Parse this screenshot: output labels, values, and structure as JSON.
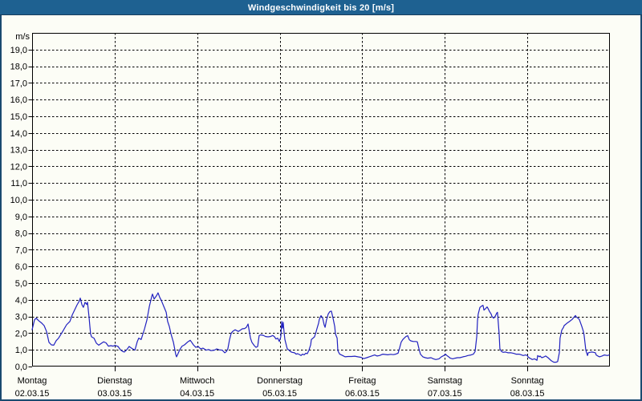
{
  "window": {
    "title": "Windgeschwindigkeit bis 20 [m/s]"
  },
  "colors": {
    "titlebar_bg": "#1e6191",
    "titlebar_text": "#ffffff",
    "frame_border": "#1a4a70",
    "background": "#fcfdf6",
    "plot_border": "#000000",
    "grid": "#000000",
    "line": "#2121c0",
    "label_text": "#000000"
  },
  "chart_data": {
    "type": "line",
    "title": "Windgeschwindigkeit bis 20 [m/s]",
    "ylabel": "m/s",
    "ylim": [
      0,
      20
    ],
    "grid": "dashed",
    "legend": "none",
    "y_tick_values": [
      0,
      1,
      2,
      3,
      4,
      5,
      6,
      7,
      8,
      9,
      10,
      11,
      12,
      13,
      14,
      15,
      16,
      17,
      18,
      19
    ],
    "y_tick_labels": [
      "0,0",
      "1,0",
      "2,0",
      "3,0",
      "4,0",
      "5,0",
      "6,0",
      "7,0",
      "8,0",
      "9,0",
      "10,0",
      "11,0",
      "12,0",
      "13,0",
      "14,0",
      "15,0",
      "16,0",
      "17,0",
      "18,0",
      "19,0"
    ],
    "x_unit": "hours",
    "xlim": [
      0,
      168
    ],
    "x_day_ticks": [
      {
        "name": "Montag",
        "date": "02.03.15",
        "hour": 0
      },
      {
        "name": "Dienstag",
        "date": "03.03.15",
        "hour": 24
      },
      {
        "name": "Mittwoch",
        "date": "04.03.15",
        "hour": 48
      },
      {
        "name": "Donnerstag",
        "date": "05.03.15",
        "hour": 72
      },
      {
        "name": "Freitag",
        "date": "06.03.15",
        "hour": 96
      },
      {
        "name": "Samstag",
        "date": "07.03.15",
        "hour": 120
      },
      {
        "name": "Sonntag",
        "date": "08.03.15",
        "hour": 144
      }
    ],
    "series": [
      {
        "name": "Windgeschwindigkeit",
        "color": "#2121c0",
        "points": [
          [
            0,
            2.2
          ],
          [
            0.7,
            2.8
          ],
          [
            1.2,
            2.9
          ],
          [
            1.9,
            2.75
          ],
          [
            2.8,
            2.6
          ],
          [
            3.5,
            2.45
          ],
          [
            4.2,
            2.1
          ],
          [
            4.9,
            1.45
          ],
          [
            5.6,
            1.3
          ],
          [
            6.3,
            1.28
          ],
          [
            7,
            1.55
          ],
          [
            7.7,
            1.7
          ],
          [
            8.9,
            2.1
          ],
          [
            10,
            2.5
          ],
          [
            11,
            2.7
          ],
          [
            11.7,
            3.1
          ],
          [
            12.4,
            3.4
          ],
          [
            13.1,
            3.7
          ],
          [
            13.8,
            3.95
          ],
          [
            14,
            4.1
          ],
          [
            14.5,
            3.7
          ],
          [
            14.9,
            3.55
          ],
          [
            15.4,
            3.85
          ],
          [
            15.9,
            3.72
          ],
          [
            16.1,
            3.85
          ],
          [
            16.3,
            3.45
          ],
          [
            16.6,
            2.9
          ],
          [
            16.8,
            2.4
          ],
          [
            17,
            1.95
          ],
          [
            17.3,
            1.78
          ],
          [
            18,
            1.7
          ],
          [
            18.7,
            1.4
          ],
          [
            19.4,
            1.28
          ],
          [
            20.1,
            1.38
          ],
          [
            20.8,
            1.48
          ],
          [
            21.5,
            1.42
          ],
          [
            22.2,
            1.22
          ],
          [
            22.9,
            1.25
          ],
          [
            23.6,
            1.22
          ],
          [
            24,
            1.27
          ],
          [
            25,
            1.2
          ],
          [
            25.7,
            1.0
          ],
          [
            26.4,
            0.9
          ],
          [
            26.8,
            0.87
          ],
          [
            27.5,
            1.0
          ],
          [
            28.2,
            1.2
          ],
          [
            28.9,
            1.1
          ],
          [
            29.9,
            0.98
          ],
          [
            30.6,
            1.5
          ],
          [
            31,
            1.7
          ],
          [
            31.7,
            1.62
          ],
          [
            32.7,
            2.26
          ],
          [
            33.4,
            2.8
          ],
          [
            34.1,
            3.6
          ],
          [
            34.8,
            4.2
          ],
          [
            35,
            4.34
          ],
          [
            35.5,
            4.05
          ],
          [
            36.2,
            4.25
          ],
          [
            36.6,
            4.42
          ],
          [
            37.1,
            4.15
          ],
          [
            37.6,
            3.95
          ],
          [
            38.3,
            3.6
          ],
          [
            39,
            3.25
          ],
          [
            39.4,
            2.7
          ],
          [
            39.9,
            2.4
          ],
          [
            40.4,
            1.95
          ],
          [
            41.1,
            1.45
          ],
          [
            41.8,
            0.7
          ],
          [
            42,
            0.58
          ],
          [
            42.5,
            0.8
          ],
          [
            42.9,
            1.0
          ],
          [
            43.6,
            1.22
          ],
          [
            44.3,
            1.3
          ],
          [
            45.3,
            1.48
          ],
          [
            46,
            1.57
          ],
          [
            46.4,
            1.45
          ],
          [
            46.9,
            1.3
          ],
          [
            47.6,
            1.15
          ],
          [
            48.3,
            1.2
          ],
          [
            49,
            1.06
          ],
          [
            49.7,
            1.1
          ],
          [
            50.6,
            0.98
          ],
          [
            51.3,
            1.02
          ],
          [
            52,
            0.95
          ],
          [
            53,
            0.98
          ],
          [
            53.7,
            1.06
          ],
          [
            54.4,
            1.0
          ],
          [
            55.3,
            0.98
          ],
          [
            56,
            0.82
          ],
          [
            56.5,
            0.9
          ],
          [
            56.9,
            1.06
          ],
          [
            57.4,
            1.6
          ],
          [
            57.9,
            2.0
          ],
          [
            58.3,
            2.1
          ],
          [
            59,
            2.2
          ],
          [
            60,
            2.1
          ],
          [
            60.7,
            2.2
          ],
          [
            61.1,
            2.26
          ],
          [
            61.8,
            2.28
          ],
          [
            62.3,
            2.35
          ],
          [
            62.8,
            2.55
          ],
          [
            63.5,
            1.7
          ],
          [
            63.9,
            1.45
          ],
          [
            64.6,
            1.25
          ],
          [
            65.1,
            1.15
          ],
          [
            65.6,
            1.2
          ],
          [
            66,
            1.85
          ],
          [
            66.5,
            1.9
          ],
          [
            67.2,
            1.87
          ],
          [
            67.9,
            1.8
          ],
          [
            68.6,
            1.78
          ],
          [
            69.3,
            1.8
          ],
          [
            70,
            1.86
          ],
          [
            70.5,
            1.78
          ],
          [
            70.9,
            1.65
          ],
          [
            71.4,
            1.7
          ],
          [
            71.9,
            1.5
          ],
          [
            72.3,
            1.78
          ],
          [
            72.6,
            2.7
          ],
          [
            72.8,
            2.3
          ],
          [
            73,
            2.65
          ],
          [
            73.3,
            2.0
          ],
          [
            73.5,
            1.62
          ],
          [
            74,
            1.22
          ],
          [
            74.2,
            1.06
          ],
          [
            74.7,
            0.98
          ],
          [
            75.1,
            0.9
          ],
          [
            75.6,
            0.85
          ],
          [
            76.3,
            0.82
          ],
          [
            76.8,
            0.74
          ],
          [
            77.2,
            0.77
          ],
          [
            77.7,
            0.72
          ],
          [
            78.2,
            0.66
          ],
          [
            78.6,
            0.74
          ],
          [
            79.1,
            0.7
          ],
          [
            79.6,
            0.8
          ],
          [
            80,
            0.77
          ],
          [
            80.5,
            0.98
          ],
          [
            81,
            1.3
          ],
          [
            81.2,
            1.62
          ],
          [
            81.7,
            1.7
          ],
          [
            82.1,
            1.78
          ],
          [
            82.6,
            2.1
          ],
          [
            82.8,
            2.26
          ],
          [
            83.3,
            2.6
          ],
          [
            83.5,
            2.82
          ],
          [
            84,
            3.05
          ],
          [
            84.5,
            2.9
          ],
          [
            84.9,
            2.5
          ],
          [
            85.2,
            2.35
          ],
          [
            85.6,
            2.8
          ],
          [
            86.1,
            3.15
          ],
          [
            86.6,
            3.3
          ],
          [
            87,
            3.32
          ],
          [
            87.5,
            2.9
          ],
          [
            88,
            2.4
          ],
          [
            88.2,
            1.95
          ],
          [
            88.7,
            1.7
          ],
          [
            88.9,
            0.95
          ],
          [
            89.4,
            0.75
          ],
          [
            90.3,
            0.66
          ],
          [
            91,
            0.58
          ],
          [
            91.9,
            0.6
          ],
          [
            92.9,
            0.6
          ],
          [
            93.8,
            0.62
          ],
          [
            94.7,
            0.58
          ],
          [
            95.7,
            0.55
          ],
          [
            96.4,
            0.47
          ],
          [
            97.3,
            0.53
          ],
          [
            98,
            0.58
          ],
          [
            98.7,
            0.63
          ],
          [
            99.6,
            0.69
          ],
          [
            100.3,
            0.63
          ],
          [
            101,
            0.66
          ],
          [
            102,
            0.74
          ],
          [
            102.7,
            0.72
          ],
          [
            103.4,
            0.7
          ],
          [
            104.3,
            0.73
          ],
          [
            105,
            0.71
          ],
          [
            105.7,
            0.74
          ],
          [
            106.4,
            0.8
          ],
          [
            106.9,
            1.14
          ],
          [
            107.3,
            1.46
          ],
          [
            107.8,
            1.62
          ],
          [
            108.3,
            1.72
          ],
          [
            108.7,
            1.8
          ],
          [
            109.2,
            1.85
          ],
          [
            109.7,
            1.6
          ],
          [
            110.1,
            1.54
          ],
          [
            110.8,
            1.5
          ],
          [
            111.5,
            1.5
          ],
          [
            112,
            1.48
          ],
          [
            112.5,
            1.06
          ],
          [
            112.9,
            0.74
          ],
          [
            113.6,
            0.58
          ],
          [
            114.3,
            0.53
          ],
          [
            115,
            0.5
          ],
          [
            116,
            0.53
          ],
          [
            116.7,
            0.46
          ],
          [
            117.4,
            0.42
          ],
          [
            118.3,
            0.46
          ],
          [
            119,
            0.58
          ],
          [
            119.7,
            0.66
          ],
          [
            120.2,
            0.74
          ],
          [
            120.6,
            0.66
          ],
          [
            121.1,
            0.58
          ],
          [
            121.6,
            0.5
          ],
          [
            122.3,
            0.46
          ],
          [
            123,
            0.5
          ],
          [
            123.7,
            0.53
          ],
          [
            124.4,
            0.53
          ],
          [
            125.3,
            0.58
          ],
          [
            126,
            0.61
          ],
          [
            126.7,
            0.66
          ],
          [
            127.6,
            0.69
          ],
          [
            128.3,
            0.74
          ],
          [
            128.8,
            0.9
          ],
          [
            129.3,
            1.8
          ],
          [
            129.5,
            2.74
          ],
          [
            129.7,
            3.14
          ],
          [
            130.2,
            3.54
          ],
          [
            130.7,
            3.62
          ],
          [
            131.1,
            3.67
          ],
          [
            131.4,
            3.38
          ],
          [
            131.8,
            3.46
          ],
          [
            132.3,
            3.57
          ],
          [
            132.5,
            3.5
          ],
          [
            133,
            3.3
          ],
          [
            133.5,
            3.14
          ],
          [
            133.7,
            3.0
          ],
          [
            134.2,
            2.9
          ],
          [
            134.6,
            3.0
          ],
          [
            135.1,
            3.2
          ],
          [
            135.3,
            3.25
          ],
          [
            135.8,
            1.95
          ],
          [
            136,
            1.06
          ],
          [
            136.5,
            0.9
          ],
          [
            137,
            0.85
          ],
          [
            137.7,
            0.87
          ],
          [
            138.4,
            0.82
          ],
          [
            139.3,
            0.82
          ],
          [
            140,
            0.79
          ],
          [
            140.7,
            0.74
          ],
          [
            141.6,
            0.74
          ],
          [
            142.3,
            0.69
          ],
          [
            142.8,
            0.66
          ],
          [
            143.5,
            0.69
          ],
          [
            144,
            0.66
          ],
          [
            144.2,
            0.58
          ],
          [
            144.7,
            0.5
          ],
          [
            145.1,
            0.46
          ],
          [
            145.4,
            0.42
          ],
          [
            146.1,
            0.46
          ],
          [
            146.8,
            0.37
          ],
          [
            147,
            0.66
          ],
          [
            147.5,
            0.58
          ],
          [
            147.7,
            0.63
          ],
          [
            148.2,
            0.53
          ],
          [
            148.9,
            0.58
          ],
          [
            149.3,
            0.63
          ],
          [
            150,
            0.53
          ],
          [
            151,
            0.34
          ],
          [
            151.7,
            0.26
          ],
          [
            152.4,
            0.26
          ],
          [
            152.8,
            0.3
          ],
          [
            153.3,
            0.82
          ],
          [
            153.5,
            1.7
          ],
          [
            154,
            2.18
          ],
          [
            154.5,
            2.34
          ],
          [
            154.7,
            2.45
          ],
          [
            155.6,
            2.61
          ],
          [
            156.3,
            2.71
          ],
          [
            157,
            2.82
          ],
          [
            158,
            3.06
          ],
          [
            158.2,
            2.98
          ],
          [
            158.7,
            2.9
          ],
          [
            159.1,
            2.82
          ],
          [
            159.4,
            2.66
          ],
          [
            159.8,
            2.42
          ],
          [
            160.3,
            2.1
          ],
          [
            160.5,
            1.86
          ],
          [
            161,
            0.98
          ],
          [
            161.5,
            0.66
          ],
          [
            161.7,
            0.82
          ],
          [
            162.2,
            0.85
          ],
          [
            162.6,
            0.87
          ],
          [
            163.3,
            0.85
          ],
          [
            163.8,
            0.82
          ],
          [
            164,
            0.69
          ],
          [
            164.5,
            0.63
          ],
          [
            165,
            0.58
          ],
          [
            165.7,
            0.63
          ],
          [
            166.4,
            0.69
          ],
          [
            167.3,
            0.66
          ],
          [
            167.8,
            0.69
          ]
        ]
      }
    ]
  }
}
